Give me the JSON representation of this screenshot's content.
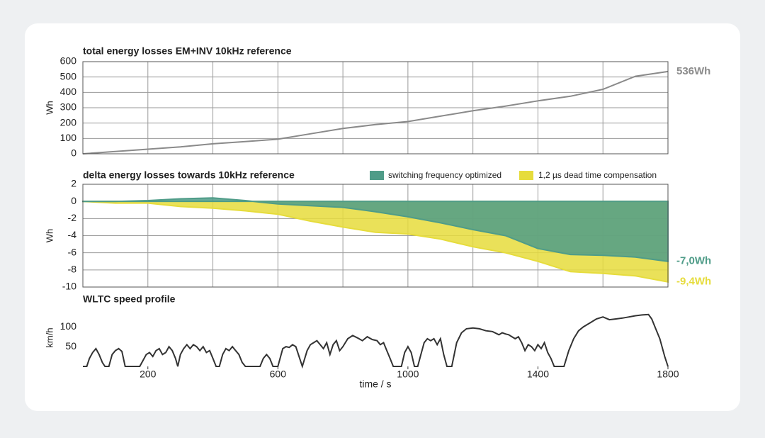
{
  "chart_data": [
    {
      "type": "line",
      "title": "total energy losses EM+INV 10kHz reference",
      "ylabel": "Wh",
      "x": [
        0,
        100,
        200,
        300,
        400,
        500,
        600,
        700,
        800,
        900,
        1000,
        1100,
        1200,
        1300,
        1400,
        1500,
        1600,
        1700,
        1800
      ],
      "xlim": [
        0,
        1800
      ],
      "xticks": [
        0,
        200,
        400,
        600,
        800,
        1000,
        1200,
        1400,
        1600,
        1800
      ],
      "xtick_labels": false,
      "ylim": [
        0,
        600
      ],
      "yticks": [
        0,
        100,
        200,
        300,
        400,
        500,
        600
      ],
      "grid": true,
      "frame": true,
      "series": [
        {
          "color": "#8a8a8a",
          "values": [
            0,
            15,
            30,
            45,
            65,
            80,
            95,
            130,
            165,
            190,
            210,
            245,
            280,
            310,
            345,
            375,
            420,
            505,
            536
          ],
          "value_labels": [
            null,
            null,
            null,
            null,
            null,
            null,
            null,
            null,
            null,
            null,
            null,
            null,
            null,
            null,
            null,
            null,
            null,
            null,
            "536Wh"
          ]
        }
      ]
    },
    {
      "type": "area",
      "title": "delta energy losses towards 10kHz reference",
      "ylabel": "Wh",
      "x": [
        0,
        100,
        200,
        300,
        400,
        500,
        600,
        700,
        800,
        900,
        1000,
        1100,
        1200,
        1300,
        1400,
        1500,
        1600,
        1700,
        1800
      ],
      "xlim": [
        0,
        1800
      ],
      "xticks": [
        0,
        200,
        400,
        600,
        800,
        1000,
        1200,
        1400,
        1600,
        1800
      ],
      "xtick_labels": false,
      "ylim": [
        -10,
        2
      ],
      "yticks": [
        2,
        0,
        -2,
        -4,
        -6,
        -8,
        -10
      ],
      "grid": true,
      "frame": true,
      "legend": "top-right",
      "series": [
        {
          "name": "switching frequency optimized",
          "color": "#4f9c88",
          "values": [
            0,
            0,
            0.1,
            0.3,
            0.4,
            0.1,
            -0.3,
            -0.5,
            -0.7,
            -1.2,
            -1.8,
            -2.5,
            -3.3,
            -4.0,
            -5.5,
            -6.2,
            -6.3,
            -6.5,
            -7.0
          ],
          "value_labels": [
            null,
            null,
            null,
            null,
            null,
            null,
            null,
            null,
            null,
            null,
            null,
            null,
            null,
            null,
            null,
            null,
            null,
            null,
            "-7,0Wh"
          ]
        },
        {
          "name": "1,2 µs dead time compensation",
          "color": "#e6dc3c",
          "values": [
            0,
            -0.2,
            -0.2,
            -0.6,
            -0.8,
            -1.1,
            -1.5,
            -2.3,
            -3.0,
            -3.6,
            -3.8,
            -4.4,
            -5.3,
            -6.0,
            -7.0,
            -8.2,
            -8.4,
            -8.7,
            -9.4
          ],
          "value_labels": [
            null,
            null,
            null,
            null,
            null,
            null,
            null,
            null,
            null,
            null,
            null,
            null,
            null,
            null,
            null,
            null,
            null,
            null,
            "-9,4Wh"
          ]
        }
      ]
    },
    {
      "type": "line",
      "title": "WLTC speed profile",
      "ylabel": "km/h",
      "xlabel": "time / s",
      "x": [
        0,
        12,
        20,
        30,
        40,
        50,
        60,
        68,
        80,
        90,
        100,
        110,
        120,
        130,
        140,
        175,
        185,
        195,
        205,
        215,
        225,
        235,
        245,
        255,
        265,
        275,
        285,
        292,
        300,
        310,
        320,
        330,
        340,
        350,
        360,
        370,
        380,
        390,
        400,
        410,
        420,
        430,
        440,
        450,
        460,
        470,
        480,
        490,
        500,
        545,
        555,
        565,
        575,
        585,
        600,
        615,
        625,
        635,
        645,
        655,
        665,
        675,
        690,
        700,
        710,
        720,
        730,
        740,
        750,
        760,
        770,
        780,
        790,
        800,
        815,
        830,
        845,
        860,
        875,
        890,
        905,
        915,
        925,
        935,
        945,
        955,
        980,
        990,
        1000,
        1010,
        1020,
        1030,
        1040,
        1050,
        1060,
        1070,
        1080,
        1090,
        1100,
        1110,
        1120,
        1135,
        1150,
        1165,
        1180,
        1200,
        1220,
        1240,
        1260,
        1280,
        1290,
        1300,
        1310,
        1320,
        1330,
        1340,
        1350,
        1360,
        1370,
        1380,
        1390,
        1400,
        1410,
        1420,
        1430,
        1440,
        1450,
        1480,
        1495,
        1510,
        1525,
        1540,
        1560,
        1580,
        1600,
        1620,
        1640,
        1660,
        1680,
        1700,
        1720,
        1740,
        1750,
        1760,
        1775,
        1790,
        1800
      ],
      "xlim": [
        0,
        1800
      ],
      "xticks": [
        200,
        600,
        1000,
        1400,
        1800
      ],
      "xtick_labels": true,
      "ylim": [
        0,
        145
      ],
      "yticks": [
        50,
        100
      ],
      "grid": false,
      "frame": false,
      "series": [
        {
          "color": "#333333",
          "values": [
            0,
            0,
            20,
            35,
            45,
            30,
            10,
            0,
            0,
            30,
            40,
            45,
            38,
            0,
            0,
            0,
            15,
            30,
            35,
            25,
            40,
            45,
            30,
            35,
            50,
            40,
            20,
            0,
            30,
            45,
            55,
            45,
            55,
            50,
            40,
            50,
            35,
            40,
            20,
            0,
            0,
            30,
            45,
            40,
            50,
            40,
            30,
            10,
            0,
            0,
            20,
            30,
            20,
            0,
            0,
            45,
            50,
            48,
            55,
            50,
            25,
            0,
            40,
            55,
            60,
            65,
            55,
            45,
            60,
            30,
            55,
            65,
            40,
            50,
            70,
            78,
            72,
            65,
            75,
            68,
            65,
            55,
            60,
            40,
            20,
            0,
            0,
            35,
            50,
            35,
            0,
            0,
            30,
            60,
            70,
            65,
            70,
            55,
            70,
            30,
            0,
            0,
            60,
            85,
            95,
            97,
            95,
            90,
            88,
            80,
            85,
            82,
            80,
            75,
            70,
            75,
            60,
            40,
            55,
            50,
            40,
            55,
            45,
            60,
            35,
            20,
            0,
            0,
            40,
            70,
            90,
            100,
            110,
            120,
            125,
            118,
            120,
            122,
            125,
            128,
            130,
            131,
            120,
            100,
            70,
            25,
            0
          ]
        }
      ]
    }
  ]
}
